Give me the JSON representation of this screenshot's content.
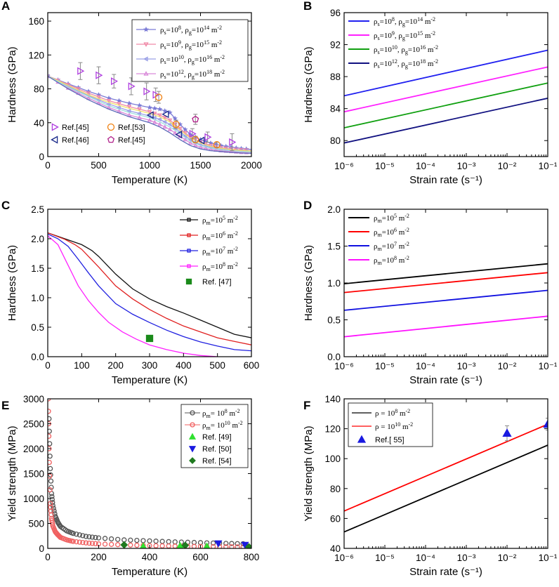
{
  "panels": [
    {
      "id": "A",
      "label": "A",
      "type": "line",
      "xlabel": "Temperature (K)",
      "ylabel": "Hardness (GPa)",
      "xlim": [
        0,
        2000
      ],
      "ylim": [
        0,
        170
      ],
      "xticks": [
        0,
        500,
        1000,
        1500,
        2000
      ],
      "yticks": [
        0,
        40,
        80,
        120,
        160
      ],
      "series": [
        {
          "name": "ρs=10^8, ρg=10^14 m^-2",
          "color": "#7b7bd6",
          "marker": "star",
          "x": [
            0,
            200,
            400,
            600,
            800,
            1000,
            1100,
            1200,
            1300,
            1400,
            1500,
            1600,
            1700,
            1800,
            1900,
            2000
          ],
          "y": [
            95,
            86,
            77,
            69,
            63,
            58,
            56,
            52,
            38,
            26,
            20,
            16,
            13,
            11,
            9.5,
            8.5
          ]
        },
        {
          "name": "ρs=10^9, ρg=10^15 m^-2",
          "color": "#f08aa8",
          "marker": "triangle-down",
          "x": [
            0,
            200,
            400,
            600,
            800,
            1000,
            1100,
            1200,
            1300,
            1400,
            1500,
            1600,
            1700,
            1800,
            1900,
            2000
          ],
          "y": [
            95,
            85,
            75,
            66,
            59,
            53,
            49,
            43,
            33,
            23,
            17,
            13,
            10.5,
            9,
            8,
            7
          ]
        },
        {
          "name": "ρs=10^10, ρg=10^16 m^-2",
          "color": "#9aa0e6",
          "marker": "triangle-left",
          "x": [
            0,
            200,
            400,
            600,
            800,
            1000,
            1100,
            1200,
            1300,
            1400,
            1500,
            1600,
            1700,
            1800,
            1900,
            2000
          ],
          "y": [
            95,
            83,
            72,
            62,
            54,
            48,
            44,
            38,
            29,
            20,
            14,
            11,
            8.5,
            7.5,
            6.5,
            6
          ]
        },
        {
          "name": "ρs=10^12, ρg=10^18 m^-2",
          "color": "#d98ad9",
          "marker": "triangle-up",
          "x": [
            0,
            200,
            400,
            600,
            800,
            1000,
            1100,
            1200,
            1300,
            1400,
            1500,
            1600,
            1700,
            1800,
            1900,
            2000
          ],
          "y": [
            95,
            81,
            69,
            58,
            49,
            43,
            38,
            32,
            24,
            16,
            11,
            8.5,
            7,
            6,
            5,
            4.5
          ]
        },
        {
          "name": "",
          "color": "#f2e26b",
          "marker": "none",
          "x": [
            0,
            200,
            400,
            600,
            800,
            1000,
            1100,
            1200,
            1300,
            1400,
            1500,
            1600,
            1700,
            1800,
            1900,
            2000
          ],
          "y": [
            95,
            84,
            73,
            64,
            57,
            51,
            47,
            41,
            31,
            22,
            16,
            12,
            9.8,
            8.3,
            7.2,
            6.5
          ]
        },
        {
          "name": "",
          "color": "#9de0e0",
          "marker": "none",
          "x": [
            0,
            200,
            400,
            600,
            800,
            1000,
            1100,
            1200,
            1300,
            1400,
            1500,
            1600,
            1700,
            1800,
            1900,
            2000
          ],
          "y": [
            95,
            82,
            71,
            60,
            52,
            46,
            41,
            35,
            27,
            18,
            13,
            10,
            8,
            7,
            6,
            5.5
          ]
        },
        {
          "name": "",
          "color": "#5a6ab8",
          "marker": "none",
          "x": [
            0,
            200,
            400,
            600,
            800,
            1000,
            1100,
            1200,
            1300,
            1400,
            1500,
            1600,
            1700,
            1800,
            1900,
            2000
          ],
          "y": [
            95,
            80,
            67,
            56,
            47,
            40,
            35,
            28,
            20,
            13,
            9,
            7,
            6,
            5,
            4.2,
            3.8
          ]
        }
      ],
      "ref_points": [
        {
          "name": "Ref.[45]",
          "color": "#b040e0",
          "marker": "tri-right-open",
          "x": [
            320,
            500,
            650,
            820,
            970,
            1060,
            1420,
            1570,
            1810
          ],
          "y": [
            101,
            96,
            89,
            83,
            77,
            73,
            27,
            23,
            17
          ],
          "err": [
            10,
            10,
            8,
            10,
            10,
            8,
            6,
            6,
            10
          ]
        },
        {
          "name": "Ref.[46]",
          "color": "#1a2a8a",
          "marker": "tri-left-open",
          "x": [
            1010,
            1160,
            1290,
            1510
          ],
          "y": [
            49,
            50,
            26,
            19
          ],
          "err": [
            0,
            0,
            0,
            0
          ]
        },
        {
          "name": "Ref.[53]",
          "color": "#f08010",
          "marker": "circle-open",
          "x": [
            1090,
            1260,
            1450,
            1660
          ],
          "y": [
            70,
            38,
            20,
            14
          ],
          "err": [
            7,
            5,
            4,
            3
          ]
        },
        {
          "name": "Ref.[45]",
          "color": "#b0208a",
          "marker": "pentagon-open",
          "x": [
            1450
          ],
          "y": [
            44
          ],
          "err": [
            6
          ]
        }
      ]
    },
    {
      "id": "B",
      "label": "B",
      "type": "line",
      "xlabel": "Strain rate (s⁻¹)",
      "ylabel": "Hardness (GPa)",
      "xscale": "log",
      "xlim_exp": [
        -6,
        -1
      ],
      "ylim": [
        78,
        96
      ],
      "xticks": [
        "10⁻⁶",
        "10⁻⁵",
        "10⁻⁴",
        "10⁻³",
        "10⁻²",
        "10⁻¹"
      ],
      "yticks": [
        80,
        84,
        88,
        92,
        96
      ],
      "series": [
        {
          "name": "ρs=10^8, ρg=10^14 m^-2",
          "color": "#2020f0",
          "x_exp": [
            -6,
            -1
          ],
          "y": [
            85.6,
            91.3
          ]
        },
        {
          "name": "ρs=10^9, ρg=10^15 m^-2",
          "color": "#ff20ff",
          "x_exp": [
            -6,
            -1
          ],
          "y": [
            83.6,
            89.2
          ]
        },
        {
          "name": "ρs=10^10, ρg=10^16 m^-2",
          "color": "#10a010",
          "x_exp": [
            -6,
            -1
          ],
          "y": [
            81.6,
            87.2
          ]
        },
        {
          "name": "ρs=10^12, ρg=10^18 m^-2",
          "color": "#101080",
          "x_exp": [
            -6,
            -1
          ],
          "y": [
            79.7,
            85.3
          ]
        }
      ]
    },
    {
      "id": "C",
      "label": "C",
      "type": "line",
      "xlabel": "Temperature (K)",
      "ylabel": "Hardness (GPa)",
      "xlim": [
        0,
        600
      ],
      "ylim": [
        0,
        2.5
      ],
      "xticks": [
        0,
        100,
        200,
        300,
        400,
        500,
        600
      ],
      "yticks": [
        "0.0",
        "0.5",
        "1.0",
        "1.5",
        "2.0",
        "2.5"
      ],
      "series": [
        {
          "name": "ρm=10^5 m^-2",
          "color": "#111111",
          "x": [
            0,
            50,
            100,
            130,
            150,
            200,
            250,
            300,
            350,
            400,
            450,
            500,
            550,
            600
          ],
          "y": [
            2.1,
            2.0,
            1.9,
            1.8,
            1.7,
            1.4,
            1.15,
            0.98,
            0.85,
            0.74,
            0.62,
            0.5,
            0.38,
            0.32
          ]
        },
        {
          "name": "ρm=10^6 m^-2",
          "color": "#e02020",
          "x": [
            0,
            50,
            80,
            100,
            120,
            150,
            200,
            250,
            300,
            350,
            400,
            450,
            500,
            550,
            600
          ],
          "y": [
            2.1,
            1.99,
            1.9,
            1.82,
            1.7,
            1.52,
            1.2,
            0.98,
            0.8,
            0.65,
            0.52,
            0.42,
            0.32,
            0.26,
            0.2
          ]
        },
        {
          "name": "ρm=10^7 m^-2",
          "color": "#2020e0",
          "x": [
            0,
            30,
            60,
            90,
            120,
            150,
            200,
            250,
            300,
            350,
            400,
            450,
            500,
            550,
            600
          ],
          "y": [
            2.08,
            2.0,
            1.87,
            1.65,
            1.42,
            1.2,
            0.9,
            0.72,
            0.58,
            0.45,
            0.34,
            0.25,
            0.18,
            0.12,
            0.1
          ]
        },
        {
          "name": "ρm=10^8 m^-2",
          "color": "#ff20ff",
          "x": [
            0,
            30,
            60,
            90,
            120,
            150,
            180,
            220,
            260,
            300,
            350,
            400,
            450,
            500
          ],
          "y": [
            2.05,
            1.9,
            1.55,
            1.2,
            0.95,
            0.75,
            0.58,
            0.42,
            0.3,
            0.2,
            0.12,
            0.06,
            0.02,
            0.0
          ]
        }
      ],
      "ref_points": [
        {
          "name": "Ref. [47]",
          "color": "#1a8a1a",
          "marker": "square",
          "x": [
            300
          ],
          "y": [
            0.31
          ]
        }
      ]
    },
    {
      "id": "D",
      "label": "D",
      "type": "line",
      "xlabel": "Strain rate (s⁻¹)",
      "ylabel": "Hardness (GPa)",
      "xscale": "log",
      "xlim_exp": [
        -6,
        -1
      ],
      "ylim": [
        0,
        2.0
      ],
      "xticks": [
        "10⁻⁶",
        "10⁻⁵",
        "10⁻⁴",
        "10⁻³",
        "10⁻²",
        "10⁻¹"
      ],
      "yticks": [
        "0.0",
        "0.5",
        "1.0",
        "1.5",
        "2.0"
      ],
      "series": [
        {
          "name": "ρm=10^5 m^-2",
          "color": "#000000",
          "x_exp": [
            -6,
            -1
          ],
          "y": [
            0.99,
            1.26
          ]
        },
        {
          "name": "ρm=10^6 m^-2",
          "color": "#ff0000",
          "x_exp": [
            -6,
            -1
          ],
          "y": [
            0.87,
            1.14
          ]
        },
        {
          "name": "ρm=10^7 m^-2",
          "color": "#1010e0",
          "x_exp": [
            -6,
            -1
          ],
          "y": [
            0.63,
            0.9
          ]
        },
        {
          "name": "ρm=10^8 m^-2",
          "color": "#ff10ff",
          "x_exp": [
            -6,
            -1
          ],
          "y": [
            0.27,
            0.55
          ]
        }
      ]
    },
    {
      "id": "E",
      "label": "E",
      "type": "scatter",
      "xlabel": "Temperature (K)",
      "ylabel": "Yield strength (MPa)",
      "xlim": [
        0,
        800
      ],
      "ylim": [
        0,
        3000
      ],
      "xticks": [
        0,
        200,
        400,
        600,
        800
      ],
      "yticks": [
        0,
        500,
        1000,
        1500,
        2000,
        2500,
        3000
      ],
      "series": [
        {
          "name": "ρm= 10^8 m^-2",
          "color": "#555555",
          "marker": "circle-open",
          "x": [
            5,
            10,
            15,
            20,
            30,
            40,
            50,
            75,
            100,
            150,
            200,
            300,
            400,
            500,
            600,
            700,
            790
          ],
          "y": [
            2600,
            1600,
            1100,
            860,
            640,
            520,
            440,
            350,
            300,
            240,
            210,
            170,
            150,
            130,
            115,
            100,
            90
          ]
        },
        {
          "name": "ρm= 10^10 m^-2",
          "color": "#f06060",
          "marker": "circle-open",
          "x": [
            2,
            5,
            10,
            15,
            20,
            30,
            40,
            50,
            75,
            100,
            150,
            200,
            300,
            400,
            500,
            600,
            700,
            790
          ],
          "y": [
            3000,
            2000,
            900,
            600,
            450,
            330,
            270,
            220,
            170,
            140,
            110,
            90,
            70,
            55,
            45,
            38,
            32,
            28
          ]
        }
      ],
      "ref_points": [
        {
          "name": "Ref. [49]",
          "color": "#30e030",
          "marker": "triangle-up",
          "x": [
            375,
            520,
            625
          ],
          "y": [
            40,
            50,
            40
          ]
        },
        {
          "name": "Ref. [50]",
          "color": "#1a1ae0",
          "marker": "triangle-down",
          "x": [
            670,
            775
          ],
          "y": [
            100,
            70
          ]
        },
        {
          "name": "Ref. [54]",
          "color": "#207a20",
          "marker": "diamond",
          "x": [
            300,
            540,
            790
          ],
          "y": [
            70,
            60,
            30
          ]
        }
      ]
    },
    {
      "id": "F",
      "label": "F",
      "type": "line",
      "xlabel": "Strain rate (s⁻¹)",
      "ylabel": "Yield strength (MPa)",
      "xscale": "log",
      "xlim_exp": [
        -6,
        -1
      ],
      "ylim": [
        40,
        140
      ],
      "xticks": [
        "10⁻⁶",
        "10⁻⁵",
        "10⁻⁴",
        "10⁻³",
        "10⁻²",
        "10⁻¹"
      ],
      "yticks": [
        40,
        60,
        80,
        100,
        120,
        140
      ],
      "series": [
        {
          "name": "ρ = 10^8 m^-2",
          "color": "#000000",
          "x_exp": [
            -6,
            -1
          ],
          "y": [
            51,
            109
          ]
        },
        {
          "name": "ρ = 10^10 m^-2",
          "color": "#ff0000",
          "x_exp": [
            -6,
            -1
          ],
          "y": [
            65,
            123
          ]
        }
      ],
      "ref_points": [
        {
          "name": "Ref.[ 55]",
          "color": "#1a1ae0",
          "marker": "triangle-up",
          "x_exp": [
            -2,
            -1
          ],
          "y": [
            117,
            123
          ],
          "err": [
            5,
            4
          ]
        }
      ]
    }
  ]
}
